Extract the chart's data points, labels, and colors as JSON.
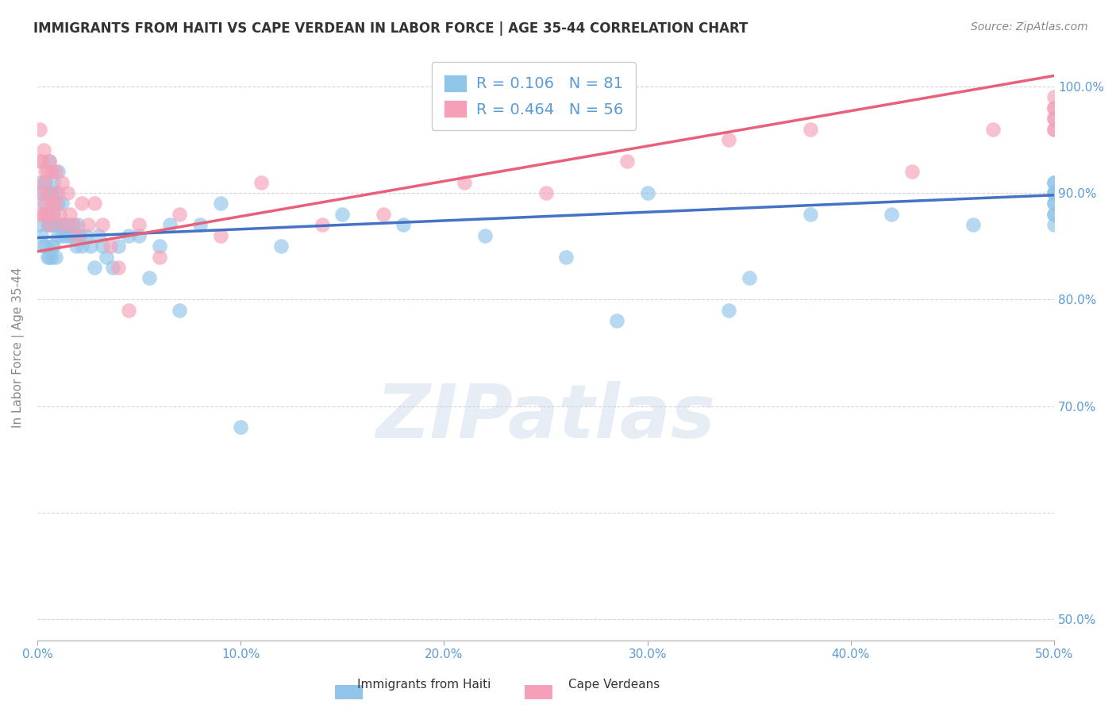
{
  "title": "IMMIGRANTS FROM HAITI VS CAPE VERDEAN IN LABOR FORCE | AGE 35-44 CORRELATION CHART",
  "source": "Source: ZipAtlas.com",
  "ylabel": "In Labor Force | Age 35-44",
  "legend_haiti": "Immigrants from Haiti",
  "legend_cv": "Cape Verdeans",
  "R_haiti": 0.106,
  "N_haiti": 81,
  "R_cv": 0.464,
  "N_cv": 56,
  "color_haiti": "#90c4e8",
  "color_cv": "#f4a0b8",
  "color_haiti_line": "#4472c4",
  "color_cv_line": "#e8607a",
  "watermark": "ZIPatlas",
  "xlim_min": 0.0,
  "xlim_max": 0.5,
  "ylim_min": 0.48,
  "ylim_max": 1.03,
  "x_ticks": [
    0.0,
    0.1,
    0.2,
    0.3,
    0.4,
    0.5
  ],
  "x_tick_labels": [
    "0.0%",
    "10.0%",
    "20.0%",
    "30.0%",
    "40.0%",
    "50.0%"
  ],
  "y_ticks_right": [
    0.5,
    0.7,
    0.8,
    0.9,
    1.0
  ],
  "y_tick_labels_right": [
    "50.0%",
    "70.0%",
    "80.0%",
    "90.0%",
    "100.0%"
  ],
  "axis_label_color": "#5b9bd5",
  "haiti_trend_x0": 0.0,
  "haiti_trend_x1": 0.5,
  "haiti_trend_y0": 0.858,
  "haiti_trend_y1": 0.898,
  "cv_trend_x0": 0.0,
  "cv_trend_x1": 0.5,
  "cv_trend_y0": 0.845,
  "cv_trend_y1": 1.01,
  "haiti_x": [
    0.001,
    0.001,
    0.002,
    0.002,
    0.003,
    0.003,
    0.004,
    0.004,
    0.004,
    0.005,
    0.005,
    0.005,
    0.006,
    0.006,
    0.006,
    0.006,
    0.007,
    0.007,
    0.007,
    0.007,
    0.008,
    0.008,
    0.008,
    0.009,
    0.009,
    0.009,
    0.01,
    0.01,
    0.01,
    0.011,
    0.012,
    0.012,
    0.013,
    0.014,
    0.015,
    0.016,
    0.017,
    0.018,
    0.019,
    0.02,
    0.021,
    0.022,
    0.024,
    0.026,
    0.028,
    0.03,
    0.032,
    0.034,
    0.037,
    0.04,
    0.045,
    0.05,
    0.055,
    0.06,
    0.065,
    0.07,
    0.08,
    0.09,
    0.1,
    0.12,
    0.15,
    0.18,
    0.22,
    0.26,
    0.3,
    0.34,
    0.38,
    0.285,
    0.35,
    0.42,
    0.46,
    0.5,
    0.5,
    0.5,
    0.5,
    0.5,
    0.5,
    0.5,
    0.5,
    0.5,
    0.5
  ],
  "haiti_y": [
    0.87,
    0.91,
    0.86,
    0.9,
    0.85,
    0.89,
    0.85,
    0.88,
    0.91,
    0.84,
    0.87,
    0.9,
    0.84,
    0.87,
    0.9,
    0.93,
    0.84,
    0.87,
    0.9,
    0.85,
    0.85,
    0.88,
    0.91,
    0.84,
    0.87,
    0.9,
    0.86,
    0.89,
    0.92,
    0.87,
    0.86,
    0.89,
    0.87,
    0.86,
    0.87,
    0.86,
    0.87,
    0.86,
    0.85,
    0.87,
    0.86,
    0.85,
    0.86,
    0.85,
    0.83,
    0.86,
    0.85,
    0.84,
    0.83,
    0.85,
    0.86,
    0.86,
    0.82,
    0.85,
    0.87,
    0.79,
    0.87,
    0.89,
    0.68,
    0.85,
    0.88,
    0.87,
    0.86,
    0.84,
    0.9,
    0.79,
    0.88,
    0.78,
    0.82,
    0.88,
    0.87,
    0.88,
    0.89,
    0.9,
    0.91,
    0.88,
    0.89,
    0.9,
    0.87,
    0.91,
    0.9
  ],
  "cv_x": [
    0.001,
    0.001,
    0.001,
    0.002,
    0.002,
    0.003,
    0.003,
    0.003,
    0.004,
    0.004,
    0.005,
    0.005,
    0.006,
    0.006,
    0.006,
    0.007,
    0.007,
    0.008,
    0.009,
    0.009,
    0.01,
    0.011,
    0.012,
    0.013,
    0.015,
    0.016,
    0.018,
    0.02,
    0.022,
    0.025,
    0.028,
    0.032,
    0.036,
    0.04,
    0.045,
    0.05,
    0.06,
    0.07,
    0.09,
    0.11,
    0.14,
    0.17,
    0.21,
    0.25,
    0.29,
    0.34,
    0.38,
    0.43,
    0.47,
    0.5,
    0.5,
    0.5,
    0.5,
    0.5,
    0.5,
    0.5
  ],
  "cv_y": [
    0.88,
    0.93,
    0.96,
    0.9,
    0.93,
    0.88,
    0.91,
    0.94,
    0.89,
    0.92,
    0.88,
    0.92,
    0.87,
    0.9,
    0.93,
    0.89,
    0.92,
    0.88,
    0.89,
    0.92,
    0.9,
    0.88,
    0.91,
    0.87,
    0.9,
    0.88,
    0.87,
    0.86,
    0.89,
    0.87,
    0.89,
    0.87,
    0.85,
    0.83,
    0.79,
    0.87,
    0.84,
    0.88,
    0.86,
    0.91,
    0.87,
    0.88,
    0.91,
    0.9,
    0.93,
    0.95,
    0.96,
    0.92,
    0.96,
    0.98,
    0.97,
    0.99,
    0.96,
    0.98,
    0.97,
    0.96
  ]
}
